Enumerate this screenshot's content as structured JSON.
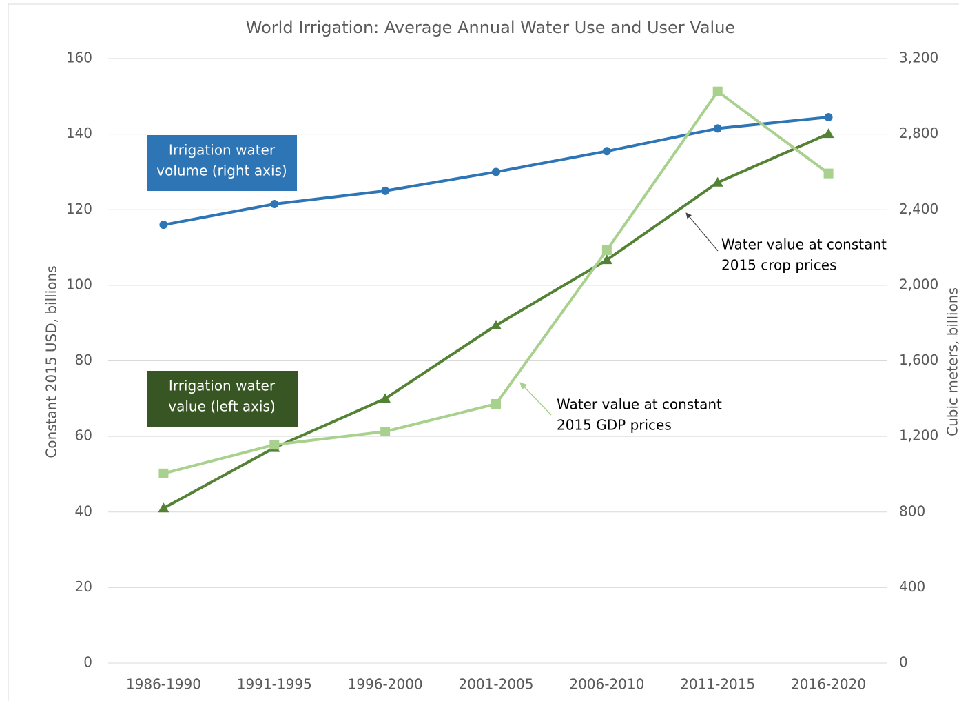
{
  "chart_data": {
    "type": "line",
    "title": "World Irrigation: Average Annual Water Use and User Value",
    "y_label": "Constant 2015 USD, billions",
    "y2_label": "Cubic meters, billions",
    "categories": [
      "1986-1990",
      "1991-1995",
      "1996-2000",
      "2001-2005",
      "2006-2010",
      "2011-2015",
      "2016-2020"
    ],
    "series": [
      {
        "color": "#2e75b6",
        "marker": "circle",
        "axis": "y2",
        "values": [
          2320,
          2430,
          2500,
          2600,
          2710,
          2830,
          2890
        ]
      },
      {
        "color": "#548235",
        "marker": "triangle",
        "values": [
          41,
          57,
          70,
          89.4,
          106.7,
          127.2,
          140.1
        ]
      },
      {
        "color": "#a9d18e",
        "marker": "square",
        "values": [
          50.2,
          57.8,
          61.3,
          68.6,
          109.3,
          151.3,
          129.6
        ]
      }
    ],
    "ylim": [
      0,
      160
    ],
    "yticks": [
      0,
      20,
      40,
      60,
      80,
      100,
      120,
      140,
      160
    ],
    "y2lim": [
      0,
      3200
    ],
    "y2ticks": [
      0,
      400,
      800,
      {
        "value": 1200,
        "label": "1,200"
      },
      {
        "value": 1600,
        "label": "1,600"
      },
      {
        "value": 2000,
        "label": "2,000"
      },
      {
        "value": 2400,
        "label": "2,400"
      },
      {
        "value": 2800,
        "label": "2,800"
      },
      {
        "value": 3200,
        "label": "3,200"
      }
    ],
    "grid": true,
    "annotations": [
      {
        "lines": [
          "Irrigation water",
          "volume (right axis)"
        ],
        "box_color": "#2e75b6"
      },
      {
        "lines": [
          "Irrigation water",
          "value (left axis)"
        ],
        "box_color": "#375623"
      },
      {
        "lines": [
          "Water value at constant",
          "2015  crop prices"
        ]
      },
      {
        "lines": [
          "Water value at constant",
          "2015 GDP prices"
        ]
      }
    ]
  }
}
